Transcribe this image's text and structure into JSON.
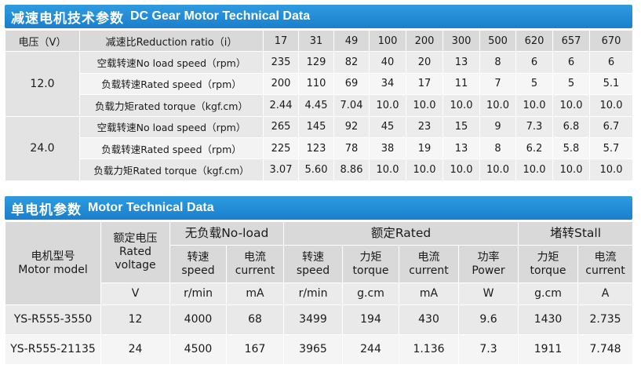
{
  "gear": {
    "title_zh": "减速电机技术参数",
    "title_en": "DC Gear Motor Technical Data",
    "voltage_header": "电压（V）",
    "ratio_header": "减速比Reduction ratio（i）",
    "ratios": [
      "17",
      "31",
      "49",
      "100",
      "200",
      "300",
      "500",
      "620",
      "657",
      "670"
    ],
    "groups": [
      {
        "voltage": "12.0",
        "rows": [
          {
            "label": "空载转速No load speed（rpm）",
            "values": [
              "235",
              "129",
              "82",
              "40",
              "20",
              "13",
              "8",
              "6",
              "6",
              "6"
            ]
          },
          {
            "label": "负载转速Rated speed（rpm）",
            "values": [
              "200",
              "110",
              "69",
              "34",
              "17",
              "11",
              "7",
              "5",
              "5",
              "5.1"
            ]
          },
          {
            "label": "负载力矩rated torque（kgf.cm）",
            "values": [
              "2.44",
              "4.45",
              "7.04",
              "10.0",
              "10.0",
              "10.0",
              "10.0",
              "10.0",
              "10.0",
              "10.0"
            ]
          }
        ]
      },
      {
        "voltage": "24.0",
        "rows": [
          {
            "label": "空载转速No load speed（rpm）",
            "values": [
              "265",
              "145",
              "92",
              "45",
              "23",
              "15",
              "9",
              "7.3",
              "6.8",
              "6.7"
            ]
          },
          {
            "label": "负载转速Rated speed（rpm）",
            "values": [
              "225",
              "123",
              "78",
              "38",
              "19",
              "13",
              "8",
              "6.2",
              "5.8",
              "5.7"
            ]
          },
          {
            "label": "负载力矩Rated torque（kgf.cm）",
            "values": [
              "3.07",
              "5.60",
              "8.86",
              "10.0",
              "10.0",
              "10.0",
              "10.0",
              "10.0",
              "10.0",
              "10.0"
            ]
          }
        ]
      }
    ]
  },
  "motor": {
    "title_zh": "单电机参数",
    "title_en": "Motor Technical Data",
    "model_zh": "电机型号",
    "model_en": "Motor model",
    "rated_voltage_zh": "额定电压",
    "rated_voltage_en1": "Rated",
    "rated_voltage_en2": "voltage",
    "noload": "无负载No-load",
    "rated": "额定Rated",
    "stall": "堵转Stall",
    "sub": [
      {
        "zh": "转速",
        "en": "speed",
        "unit": "r/min"
      },
      {
        "zh": "电流",
        "en": "current",
        "unit": "mA"
      },
      {
        "zh": "转速",
        "en": "speed",
        "unit": "r/min"
      },
      {
        "zh": "力矩",
        "en": "torque",
        "unit": "g.cm"
      },
      {
        "zh": "电流",
        "en": "current",
        "unit": "mA"
      },
      {
        "zh": "功率",
        "en": "Power",
        "unit": "W"
      },
      {
        "zh": "力矩",
        "en": "torque",
        "unit": "g.cm"
      },
      {
        "zh": "电流",
        "en": "current",
        "unit": "A"
      }
    ],
    "voltage_unit": "V",
    "rows": [
      {
        "model": "YS-R555-3550",
        "cells": [
          "12",
          "4000",
          "68",
          "3499",
          "194",
          "430",
          "9.6",
          "1430",
          "2.735"
        ]
      },
      {
        "model": "YS-R555-21135",
        "cells": [
          "24",
          "4500",
          "167",
          "3965",
          "244",
          "1.136",
          "7.3",
          "1911",
          "7.748"
        ]
      }
    ]
  }
}
